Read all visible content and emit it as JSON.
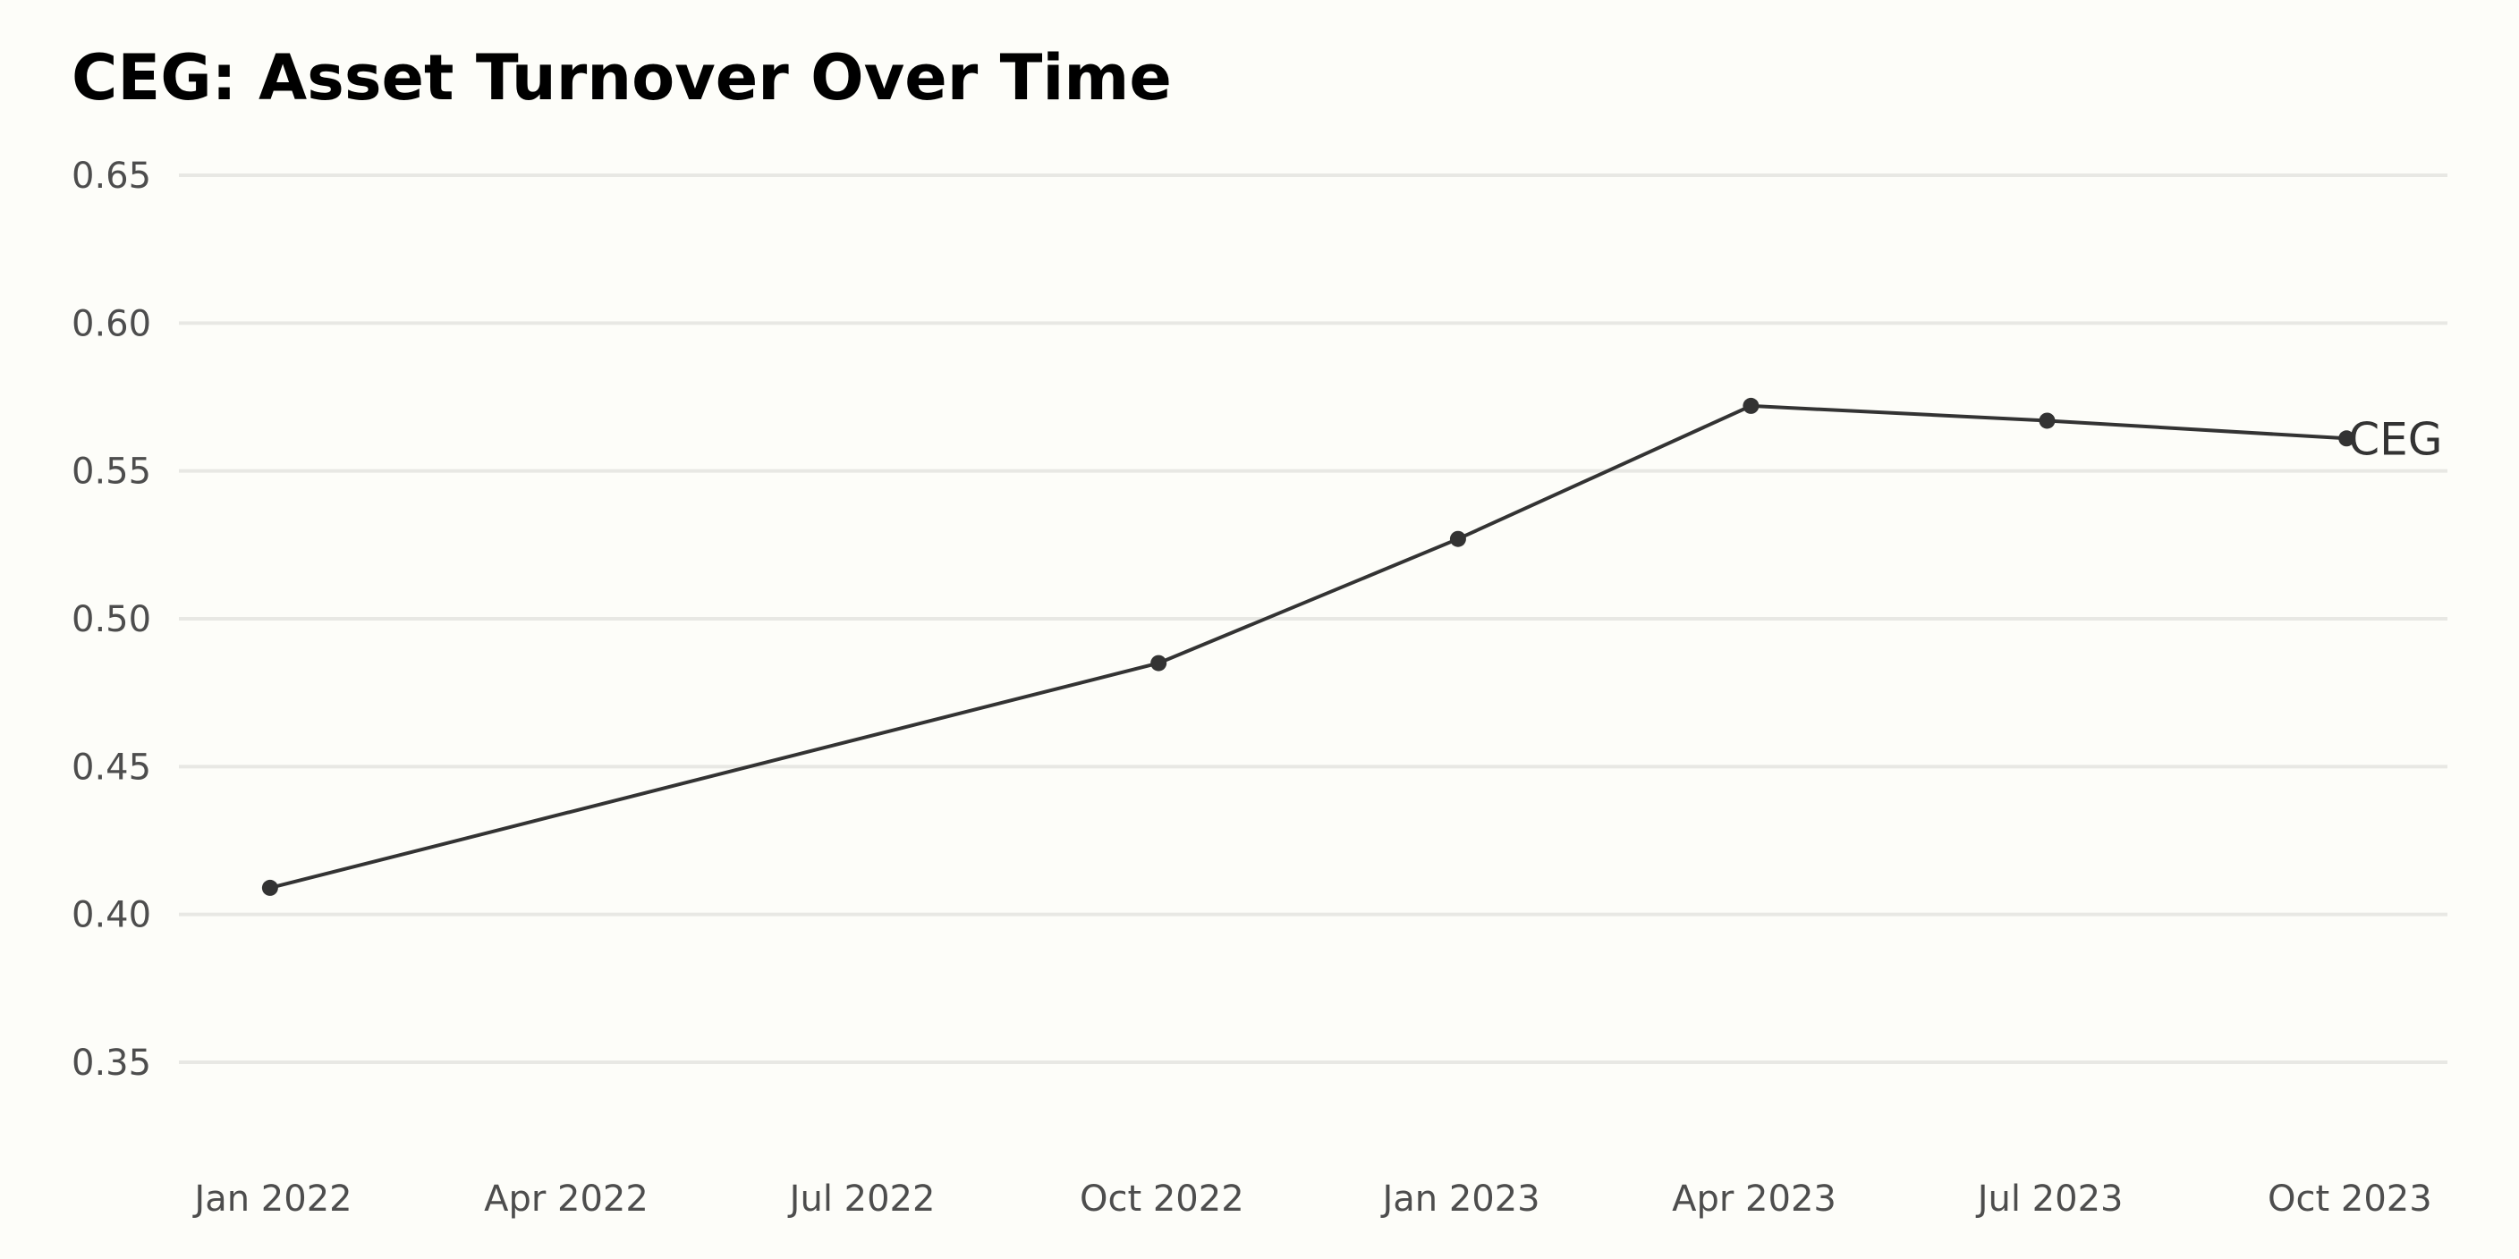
{
  "chart_data": {
    "type": "line",
    "title": "CEG: Asset Turnover Over Time",
    "xlabel": "",
    "ylabel": "",
    "x_ticks": [
      "Jan 2022",
      "Apr 2022",
      "Jul 2022",
      "Oct 2022",
      "Jan 2023",
      "Apr 2023",
      "Jul 2023",
      "Oct 2023"
    ],
    "y_ticks": [
      "0.35",
      "0.40",
      "0.45",
      "0.50",
      "0.55",
      "0.60",
      "0.65"
    ],
    "ylim": [
      0.32,
      0.66
    ],
    "xlim": [
      "2021-12-03",
      "2023-10-31"
    ],
    "grid": "horizontal",
    "legend": "none",
    "series": [
      {
        "name": "CEG",
        "color": "#333333",
        "x": [
          "2021-12-31",
          "2022-09-30",
          "2022-12-31",
          "2023-03-31",
          "2023-06-30",
          "2023-09-30"
        ],
        "values": [
          0.409,
          0.485,
          0.527,
          0.572,
          0.567,
          0.561
        ]
      }
    ]
  }
}
